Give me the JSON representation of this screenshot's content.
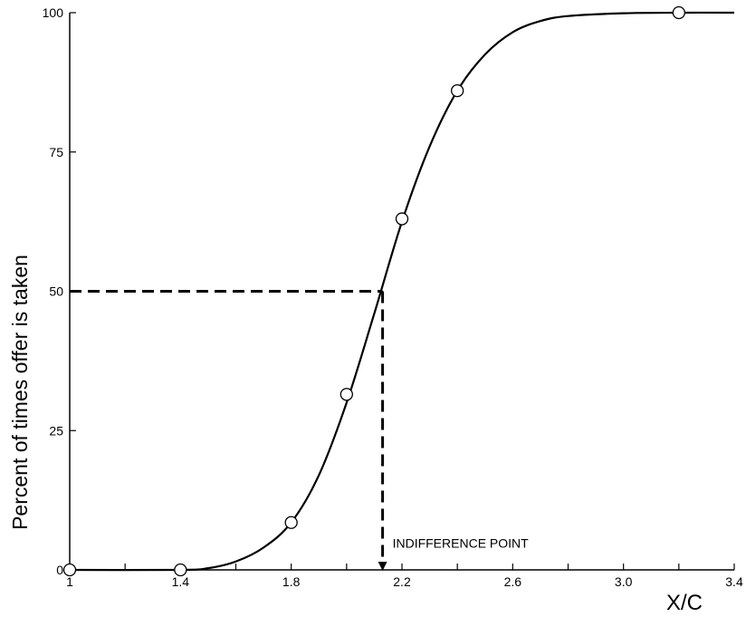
{
  "chart_data": {
    "type": "line",
    "title": "",
    "xlabel": "X/C",
    "ylabel": "Percent of times offer is taken",
    "xlim": [
      1.0,
      3.4
    ],
    "ylim": [
      0,
      100
    ],
    "grid": false,
    "legend": "none",
    "x_ticks": [
      {
        "value": 1.0,
        "label": "1"
      },
      {
        "value": 1.2,
        "label": ""
      },
      {
        "value": 1.4,
        "label": "1.4"
      },
      {
        "value": 1.6,
        "label": ""
      },
      {
        "value": 1.8,
        "label": "1.8"
      },
      {
        "value": 2.0,
        "label": ""
      },
      {
        "value": 2.2,
        "label": "2.2"
      },
      {
        "value": 2.4,
        "label": ""
      },
      {
        "value": 2.6,
        "label": "2.6"
      },
      {
        "value": 2.8,
        "label": ""
      },
      {
        "value": 3.0,
        "label": "3.0"
      },
      {
        "value": 3.2,
        "label": ""
      },
      {
        "value": 3.4,
        "label": "3.4"
      }
    ],
    "y_ticks": [
      {
        "value": 0,
        "label": "0"
      },
      {
        "value": 25,
        "label": "25"
      },
      {
        "value": 50,
        "label": "50"
      },
      {
        "value": 75,
        "label": "75"
      },
      {
        "value": 100,
        "label": "100"
      }
    ],
    "points": {
      "x": [
        1.0,
        1.4,
        1.8,
        2.0,
        2.2,
        2.4,
        3.2
      ],
      "y": [
        0,
        0,
        8.5,
        31.5,
        63,
        86,
        100
      ]
    },
    "fitted_curve": {
      "x": [
        1.0,
        1.4,
        1.5,
        1.6,
        1.7,
        1.8,
        1.9,
        2.0,
        2.1,
        2.2,
        2.3,
        2.4,
        2.5,
        2.6,
        2.7,
        2.8,
        3.0,
        3.2,
        3.4
      ],
      "y": [
        0,
        0,
        0.3,
        1.5,
        4,
        8.5,
        17,
        30,
        46,
        62.5,
        76,
        86,
        92.5,
        96.5,
        98.5,
        99.4,
        99.9,
        100,
        100
      ]
    },
    "indifference": {
      "x": 2.13,
      "y": 50
    },
    "annotations": [
      {
        "text": "INDIFFERENCE POINT",
        "x": 2.13,
        "y": 4
      }
    ]
  },
  "colors": {
    "line": "#000000",
    "marker_fill": "#ffffff",
    "background": "#ffffff"
  }
}
